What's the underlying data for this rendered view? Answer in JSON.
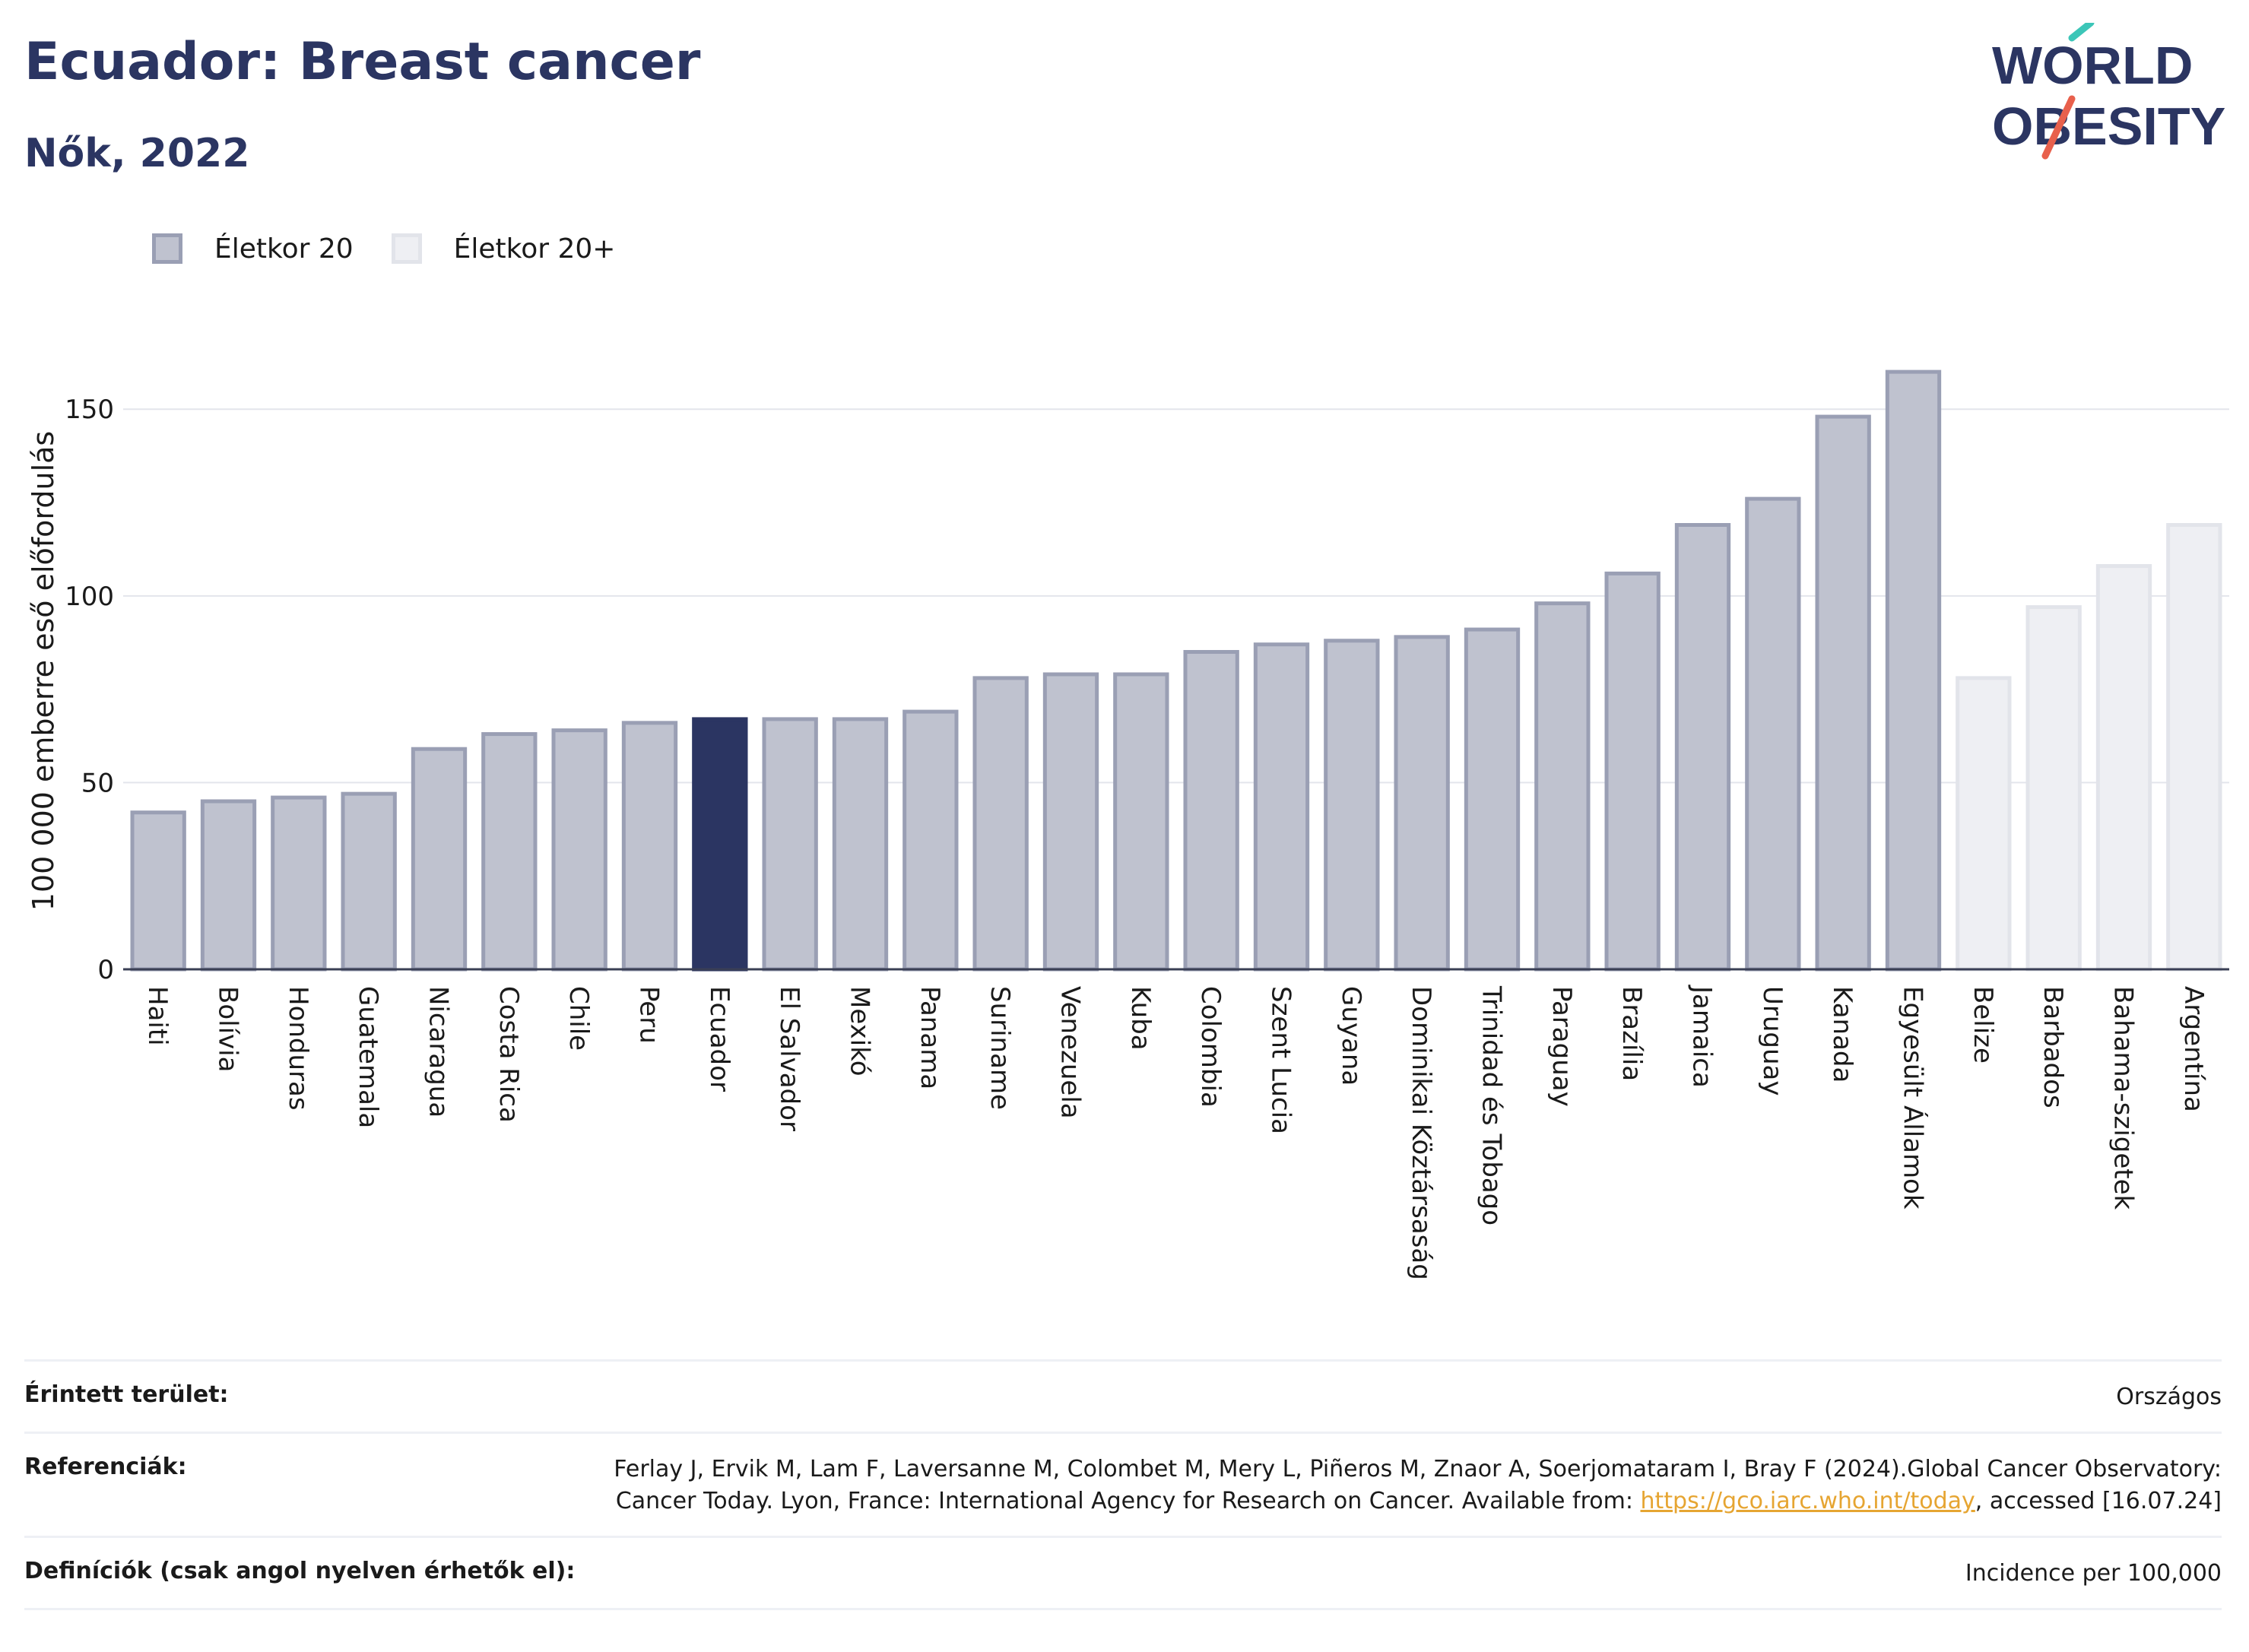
{
  "title": "Ecuador: Breast cancer",
  "subtitle": "Nők, 2022",
  "logo": {
    "line1": "WORLD",
    "line2": "OBESITY"
  },
  "legend": [
    {
      "label": "Életkor 20",
      "color": "#bfc2cf",
      "border": "#9a9fb4"
    },
    {
      "label": "Életkor 20+",
      "color": "#eeeff3",
      "border": "#e2e4ea"
    }
  ],
  "chart_data": {
    "type": "bar",
    "ylabel": "100 000 emberre eső előfordulás",
    "ylim": [
      0,
      170
    ],
    "yticks": [
      0,
      50,
      100,
      150
    ],
    "grid": true,
    "highlight": "Ecuador",
    "highlight_color": "#2b3562",
    "categories": [
      "Haiti",
      "Bolívia",
      "Honduras",
      "Guatemala",
      "Nicaragua",
      "Costa Rica",
      "Chile",
      "Peru",
      "Ecuador",
      "El Salvador",
      "Mexikó",
      "Panama",
      "Suriname",
      "Venezuela",
      "Kuba",
      "Colombia",
      "Szent Lucia",
      "Guyana",
      "Dominikai Köztársaság",
      "Trinidad és Tobago",
      "Paraguay",
      "Brazília",
      "Jamaica",
      "Uruguay",
      "Kanada",
      "Egyesült Államok",
      "Belize",
      "Barbados",
      "Bahama-szigetek",
      "Argentína"
    ],
    "values": [
      42,
      45,
      46,
      47,
      59,
      63,
      64,
      66,
      67,
      67,
      67,
      69,
      78,
      79,
      79,
      85,
      87,
      88,
      89,
      91,
      98,
      106,
      119,
      126,
      148,
      160,
      78,
      97,
      108,
      119
    ],
    "series_index": [
      0,
      0,
      0,
      0,
      0,
      0,
      0,
      0,
      0,
      0,
      0,
      0,
      0,
      0,
      0,
      0,
      0,
      0,
      0,
      0,
      0,
      0,
      0,
      0,
      0,
      0,
      1,
      1,
      1,
      1
    ]
  },
  "meta": {
    "area_label": "Érintett terület:",
    "area_value": "Országos",
    "ref_label": "Referenciák:",
    "ref_text_1": "Ferlay J, Ervik M, Lam F, Laversanne M, Colombet M, Mery L, Piñeros M, Znaor A, Soerjomataram I, Bray F (2024).Global Cancer Observatory: Cancer Today. Lyon, France: International Agency for Research on Cancer. Available from: ",
    "ref_link": "https://gco.iarc.who.int/today",
    "ref_text_2": ", accessed [16.07.24]",
    "def_label": "Definíciók (csak angol nyelven érhetők el):",
    "def_value": "Incidence per 100,000"
  }
}
